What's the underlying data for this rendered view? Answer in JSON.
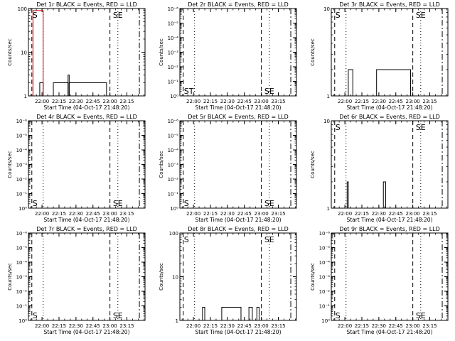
{
  "chart_data": [
    {
      "panel": "1r",
      "type": "line",
      "title": "Det 1r BLACK = Events, RED = LLD",
      "xlabel": "Start Time (04-Oct-17 21:48:20)",
      "ylabel": "Counts/sec",
      "scale": "log",
      "ylim": [
        1,
        100
      ],
      "yticks": [
        "1",
        "10",
        "100"
      ],
      "xticks": [
        "22:00",
        "22:15",
        "22:30",
        "22:45",
        "23:00",
        "23:15"
      ],
      "markers": [
        {
          "label": "S",
          "at": "21:51"
        },
        {
          "label": "SE",
          "at": "23:02"
        }
      ],
      "series": [
        {
          "color": "#000000",
          "segments": [
            {
              "from": "21:58",
              "to": "22:01",
              "value": 2
            },
            {
              "from": "22:10",
              "to": "22:23",
              "value": 2
            },
            {
              "from": "22:23",
              "to": "22:24",
              "value": 3
            },
            {
              "from": "22:24",
              "to": "22:57",
              "value": 2
            }
          ]
        },
        {
          "color": "#cc0000",
          "segments": [
            {
              "from": "21:52",
              "to": "22:01",
              "value": 90
            }
          ]
        }
      ]
    },
    {
      "panel": "2r",
      "type": "line",
      "title": "Det 2r BLACK = Events, RED = LLD",
      "xlabel": "Start Time (04-Oct-17 21:48:20)",
      "ylabel": "Counts/sec",
      "scale": "log",
      "ylim": [
        1,
        1e-06
      ],
      "yticks": [
        "10⁰",
        "10⁻¹",
        "10⁻²",
        "10⁻³",
        "10⁻⁴",
        "10⁻⁵",
        "10⁻⁶"
      ],
      "xticks": [
        "22:00",
        "22:15",
        "22:30",
        "22:45",
        "23:00",
        "23:15"
      ],
      "markers": [
        {
          "label": "ST",
          "at": "21:51",
          "pos": "bottom"
        },
        {
          "label": "SE",
          "at": "23:02",
          "pos": "bottom"
        }
      ],
      "series": []
    },
    {
      "panel": "3r",
      "type": "line",
      "title": "Det 3r BLACK = Events, RED = LLD",
      "xlabel": "Start Time (04-Oct-17 21:48:20)",
      "ylabel": "Counts/sec",
      "scale": "log",
      "ylim": [
        1,
        10
      ],
      "yticks": [
        "1",
        "10"
      ],
      "xticks": [
        "22:00",
        "22:15",
        "22:30",
        "22:45",
        "23:00",
        "23:15"
      ],
      "markers": [
        {
          "label": "S",
          "at": "21:51"
        },
        {
          "label": "SE",
          "at": "23:02"
        }
      ],
      "series": [
        {
          "color": "#000000",
          "segments": [
            {
              "from": "22:03",
              "to": "22:07",
              "value": 2
            },
            {
              "from": "22:28",
              "to": "22:58",
              "value": 2
            }
          ]
        }
      ]
    },
    {
      "panel": "4r",
      "type": "line",
      "title": "Det 4r BLACK = Events, RED = LLD",
      "xlabel": "Start Time (04-Oct-17 21:48:20)",
      "ylabel": "Counts/sec",
      "scale": "log",
      "ylim": [
        1,
        1e-06
      ],
      "yticks": [
        "10⁰",
        "10⁻¹",
        "10⁻²",
        "10⁻³",
        "10⁻⁴",
        "10⁻⁵",
        "10⁻⁶"
      ],
      "xticks": [
        "22:00",
        "22:15",
        "22:30",
        "22:45",
        "23:00",
        "23:15"
      ],
      "markers": [
        {
          "label": "S",
          "at": "21:51",
          "pos": "bottom"
        },
        {
          "label": "SE",
          "at": "23:02",
          "pos": "bottom"
        }
      ],
      "series": []
    },
    {
      "panel": "5r",
      "type": "line",
      "title": "Det 5r BLACK = Events, RED = LLD",
      "xlabel": "Start Time (04-Oct-17 21:48:20)",
      "ylabel": "Counts/sec",
      "scale": "log",
      "ylim": [
        1,
        1e-06
      ],
      "yticks": [
        "10⁰",
        "10⁻¹",
        "10⁻²",
        "10⁻³",
        "10⁻⁴",
        "10⁻⁵",
        "10⁻⁶"
      ],
      "xticks": [
        "22:00",
        "22:15",
        "22:30",
        "22:45",
        "23:00",
        "23:15"
      ],
      "markers": [
        {
          "label": "S",
          "at": "21:51",
          "pos": "bottom"
        },
        {
          "label": "SE",
          "at": "23:02",
          "pos": "bottom"
        }
      ],
      "series": []
    },
    {
      "panel": "6r",
      "type": "line",
      "title": "Det 6r BLACK = Events, RED = LLD",
      "xlabel": "Start Time (04-Oct-17 21:48:20)",
      "ylabel": "Counts/sec",
      "scale": "log",
      "ylim": [
        1,
        10
      ],
      "yticks": [
        "1",
        "10"
      ],
      "xticks": [
        "22:00",
        "22:15",
        "22:30",
        "22:45",
        "23:00",
        "23:15"
      ],
      "markers": [
        {
          "label": "S",
          "at": "21:51"
        },
        {
          "label": "SE",
          "at": "23:02"
        }
      ],
      "series": [
        {
          "color": "#000000",
          "segments": [
            {
              "from": "22:02",
              "to": "22:03",
              "value": 2
            },
            {
              "from": "22:34",
              "to": "22:36",
              "value": 2
            }
          ]
        }
      ]
    },
    {
      "panel": "7r",
      "type": "line",
      "title": "Det 7r BLACK = Events, RED = LLD",
      "xlabel": "Start Time (04-Oct-17 21:48:20)",
      "ylabel": "Counts/sec",
      "scale": "log",
      "ylim": [
        1,
        1e-06
      ],
      "yticks": [
        "10⁰",
        "10⁻¹",
        "10⁻²",
        "10⁻³",
        "10⁻⁴",
        "10⁻⁵",
        "10⁻⁶"
      ],
      "xticks": [
        "22:00",
        "22:15",
        "22:30",
        "22:45",
        "23:00",
        "23:15"
      ],
      "markers": [
        {
          "label": "S",
          "at": "21:51",
          "pos": "bottom"
        },
        {
          "label": "SE",
          "at": "23:02",
          "pos": "bottom"
        }
      ],
      "series": []
    },
    {
      "panel": "8r",
      "type": "line",
      "title": "Det 8r BLACK = Events, RED = LLD",
      "xlabel": "Start Time (04-Oct-17 21:48:20)",
      "ylabel": "Counts/sec",
      "scale": "log",
      "ylim": [
        1,
        100
      ],
      "yticks": [
        "1",
        "10",
        "100"
      ],
      "xticks": [
        "22:00",
        "22:15",
        "22:30",
        "22:45",
        "23:00",
        "23:15"
      ],
      "markers": [
        {
          "label": "S",
          "at": "21:51"
        },
        {
          "label": "SE",
          "at": "23:02"
        }
      ],
      "series": [
        {
          "color": "#000000",
          "segments": [
            {
              "from": "22:08",
              "to": "22:10",
              "value": 2
            },
            {
              "from": "22:25",
              "to": "22:42",
              "value": 2
            },
            {
              "from": "22:49",
              "to": "22:52",
              "value": 2
            },
            {
              "from": "22:56",
              "to": "22:58",
              "value": 2
            }
          ]
        }
      ]
    },
    {
      "panel": "9r",
      "type": "line",
      "title": "Det 9r BLACK = Events, RED = LLD",
      "xlabel": "Start Time (04-Oct-17 21:48:20)",
      "ylabel": "Counts/sec",
      "scale": "log",
      "ylim": [
        1,
        1e-06
      ],
      "yticks": [
        "10⁰",
        "10⁻¹",
        "10⁻²",
        "10⁻³",
        "10⁻⁴",
        "10⁻⁵",
        "10⁻⁶"
      ],
      "xticks": [
        "22:00",
        "22:15",
        "22:30",
        "22:45",
        "23:00",
        "23:15"
      ],
      "markers": [
        {
          "label": "S",
          "at": "21:51",
          "pos": "bottom"
        },
        {
          "label": "SE",
          "at": "23:02",
          "pos": "bottom"
        }
      ],
      "series": []
    }
  ]
}
